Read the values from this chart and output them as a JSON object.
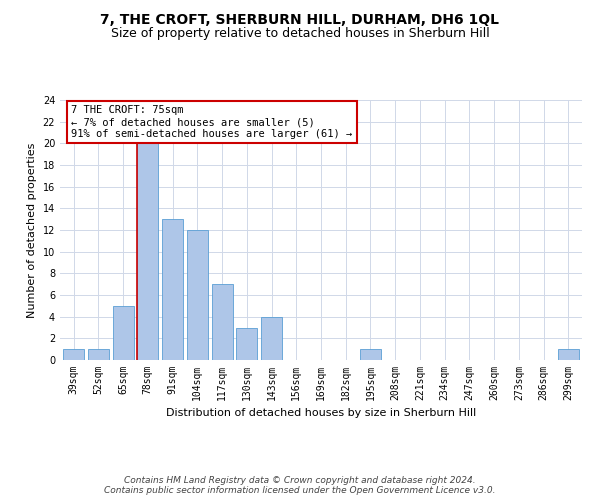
{
  "title": "7, THE CROFT, SHERBURN HILL, DURHAM, DH6 1QL",
  "subtitle": "Size of property relative to detached houses in Sherburn Hill",
  "xlabel": "Distribution of detached houses by size in Sherburn Hill",
  "ylabel": "Number of detached properties",
  "categories": [
    "39sqm",
    "52sqm",
    "65sqm",
    "78sqm",
    "91sqm",
    "104sqm",
    "117sqm",
    "130sqm",
    "143sqm",
    "156sqm",
    "169sqm",
    "182sqm",
    "195sqm",
    "208sqm",
    "221sqm",
    "234sqm",
    "247sqm",
    "260sqm",
    "273sqm",
    "286sqm",
    "299sqm"
  ],
  "values": [
    1,
    1,
    5,
    20,
    13,
    12,
    7,
    3,
    4,
    0,
    0,
    0,
    1,
    0,
    0,
    0,
    0,
    0,
    0,
    0,
    1
  ],
  "bar_color": "#aec6e8",
  "bar_edge_color": "#5a9fd4",
  "vline_index": 3,
  "vline_color": "#cc0000",
  "annotation_text": "7 THE CROFT: 75sqm\n← 7% of detached houses are smaller (5)\n91% of semi-detached houses are larger (61) →",
  "annotation_box_color": "#ffffff",
  "annotation_box_edge": "#cc0000",
  "ylim": [
    0,
    24
  ],
  "yticks": [
    0,
    2,
    4,
    6,
    8,
    10,
    12,
    14,
    16,
    18,
    20,
    22,
    24
  ],
  "footer_line1": "Contains HM Land Registry data © Crown copyright and database right 2024.",
  "footer_line2": "Contains public sector information licensed under the Open Government Licence v3.0.",
  "bg_color": "#ffffff",
  "grid_color": "#d0d8e8",
  "title_fontsize": 10,
  "subtitle_fontsize": 9,
  "axis_label_fontsize": 8,
  "tick_fontsize": 7,
  "annotation_fontsize": 7.5,
  "footer_fontsize": 6.5
}
